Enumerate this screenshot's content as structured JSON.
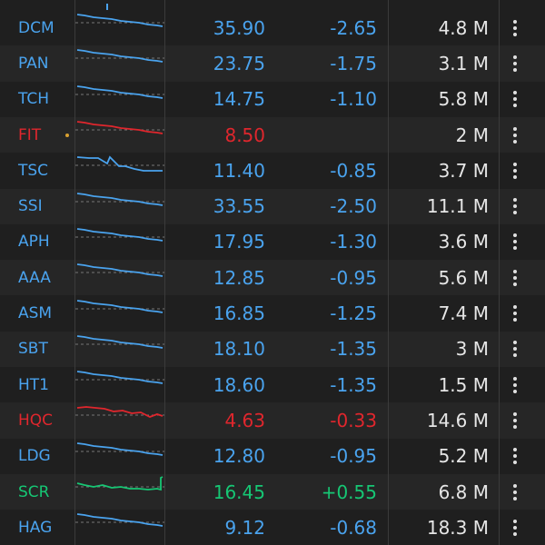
{
  "colors": {
    "blue": "#4aa3ee",
    "red": "#e0262d",
    "green": "#16c774"
  },
  "rows": [
    {
      "symbol": "DCM",
      "price": "35.90",
      "change": "-2.65",
      "volume": "4.8 M",
      "color": "blue",
      "trend": "down"
    },
    {
      "symbol": "PAN",
      "price": "23.75",
      "change": "-1.75",
      "volume": "3.1 M",
      "color": "blue",
      "trend": "down"
    },
    {
      "symbol": "TCH",
      "price": "14.75",
      "change": "-1.10",
      "volume": "5.8 M",
      "color": "blue",
      "trend": "down"
    },
    {
      "symbol": "FIT",
      "price": "8.50",
      "change": "",
      "volume": "2 M",
      "color": "red",
      "trend": "down",
      "alert_dot": true
    },
    {
      "symbol": "TSC",
      "price": "11.40",
      "change": "-0.85",
      "volume": "3.7 M",
      "color": "blue",
      "trend": "step"
    },
    {
      "symbol": "SSI",
      "price": "33.55",
      "change": "-2.50",
      "volume": "11.1 M",
      "color": "blue",
      "trend": "down"
    },
    {
      "symbol": "APH",
      "price": "17.95",
      "change": "-1.30",
      "volume": "3.6 M",
      "color": "blue",
      "trend": "down"
    },
    {
      "symbol": "AAA",
      "price": "12.85",
      "change": "-0.95",
      "volume": "5.6 M",
      "color": "blue",
      "trend": "down"
    },
    {
      "symbol": "ASM",
      "price": "16.85",
      "change": "-1.25",
      "volume": "7.4 M",
      "color": "blue",
      "trend": "down"
    },
    {
      "symbol": "SBT",
      "price": "18.10",
      "change": "-1.35",
      "volume": "3 M",
      "color": "blue",
      "trend": "down"
    },
    {
      "symbol": "HT1",
      "price": "18.60",
      "change": "-1.35",
      "volume": "1.5 M",
      "color": "blue",
      "trend": "down"
    },
    {
      "symbol": "HQC",
      "price": "4.63",
      "change": "-0.33",
      "volume": "14.6 M",
      "color": "red",
      "trend": "wavy"
    },
    {
      "symbol": "LDG",
      "price": "12.80",
      "change": "-0.95",
      "volume": "5.2 M",
      "color": "blue",
      "trend": "down"
    },
    {
      "symbol": "SCR",
      "price": "16.45",
      "change": "+0.55",
      "volume": "6.8 M",
      "color": "green",
      "trend": "up"
    },
    {
      "symbol": "HAG",
      "price": "9.12",
      "change": "-0.68",
      "volume": "18.3 M",
      "color": "blue",
      "trend": "down"
    }
  ],
  "icons": {
    "menu": "more-vertical-icon"
  }
}
